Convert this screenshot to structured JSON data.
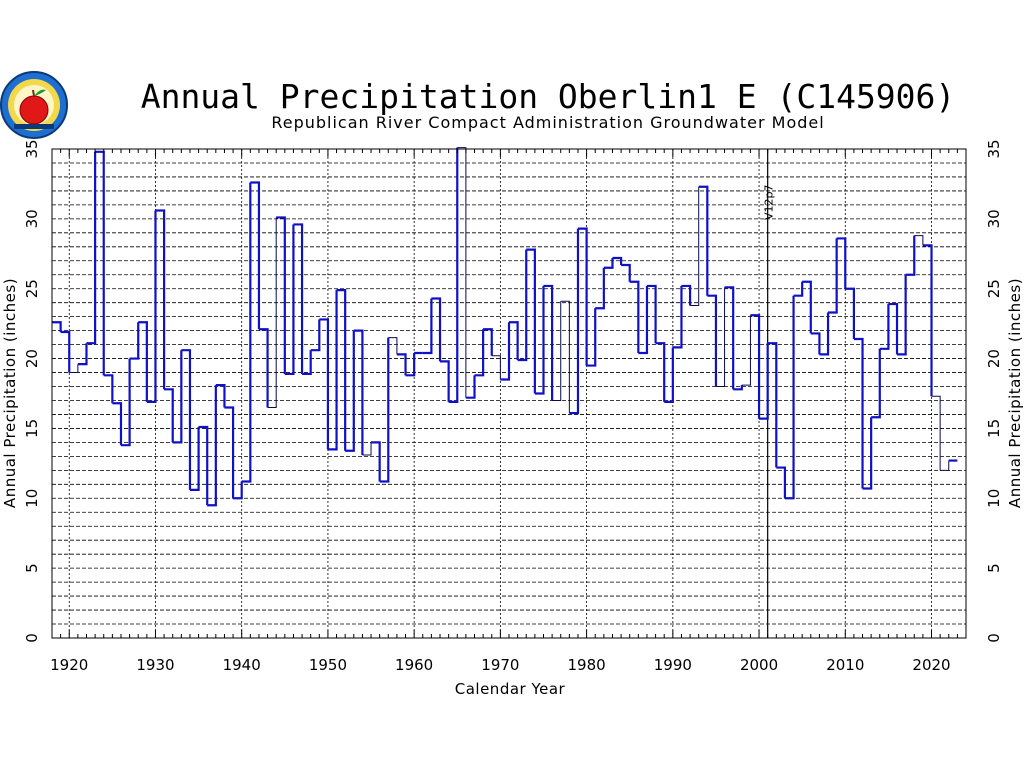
{
  "chart_data": {
    "type": "line",
    "style": "step",
    "title": "Annual Precipitation Oberlin1 E (C145906)",
    "subtitle": "Republican River Compact Administration Groundwater Model",
    "xlabel": "Calendar Year",
    "ylabel": "Annual Precipitation (inches)",
    "xlim": [
      1918,
      2024
    ],
    "ylim": [
      0,
      35
    ],
    "x_ticks": [
      "1920",
      "1930",
      "1940",
      "1950",
      "1960",
      "1970",
      "1980",
      "1990",
      "2000",
      "2010",
      "2020"
    ],
    "y_ticks": [
      "0",
      "5",
      "10",
      "15",
      "20",
      "25",
      "30",
      "35"
    ],
    "grid": true,
    "annotation": {
      "label": "V12p7",
      "x": 2001
    },
    "colors": {
      "observed": "#1010c8",
      "estimated": "#0a0a50"
    },
    "series": [
      {
        "x": [
          1918,
          1919,
          1920,
          1921,
          1922,
          1923,
          1924,
          1925,
          1926,
          1927,
          1928,
          1929,
          1930,
          1931,
          1932,
          1933,
          1934,
          1935,
          1936,
          1937,
          1938,
          1939,
          1940,
          1941,
          1942,
          1943,
          1944,
          1945,
          1946,
          1947,
          1948,
          1949,
          1950,
          1951,
          1952,
          1953,
          1954,
          1955,
          1956,
          1957,
          1958,
          1959,
          1960,
          1961,
          1962,
          1963,
          1964,
          1965,
          1966,
          1967,
          1968,
          1969,
          1970,
          1971,
          1972,
          1973,
          1974,
          1975,
          1976,
          1977,
          1978,
          1979,
          1980,
          1981,
          1982,
          1983,
          1984,
          1985,
          1986,
          1987,
          1988,
          1989,
          1990,
          1991,
          1992,
          1993,
          1994,
          1995,
          1996,
          1997,
          1998,
          1999,
          2000,
          2001,
          2002,
          2003,
          2004,
          2005,
          2006,
          2007,
          2008,
          2009,
          2010,
          2011,
          2012,
          2013,
          2014,
          2015,
          2016,
          2017,
          2018,
          2019,
          2020,
          2021,
          2022
        ],
        "y": [
          22.6,
          21.9,
          19.0,
          19.6,
          21.1,
          34.8,
          18.8,
          16.8,
          13.8,
          20.0,
          22.6,
          16.9,
          30.6,
          17.8,
          14.0,
          20.6,
          10.6,
          15.1,
          9.5,
          18.1,
          16.5,
          10.0,
          11.2,
          32.6,
          22.1,
          16.5,
          30.1,
          18.9,
          29.6,
          18.9,
          20.6,
          22.8,
          13.5,
          24.9,
          13.4,
          22.0,
          13.1,
          14.0,
          11.2,
          21.5,
          20.3,
          18.8,
          20.4,
          20.4,
          24.3,
          19.8,
          16.9,
          35.1,
          17.2,
          18.8,
          22.1,
          20.2,
          18.5,
          22.6,
          19.9,
          27.8,
          17.5,
          25.2,
          17.0,
          24.1,
          16.1,
          29.3,
          19.5,
          23.6,
          26.5,
          27.2,
          26.7,
          25.5,
          20.4,
          25.2,
          21.1,
          16.9,
          20.8,
          25.2,
          23.8,
          32.3,
          24.5,
          18.0,
          25.1,
          17.8,
          18.1,
          23.1,
          15.7,
          21.1,
          12.2,
          10.0,
          24.5,
          25.5,
          21.8,
          20.3,
          23.3,
          28.6,
          25.0,
          21.4,
          10.7,
          15.8,
          20.7,
          23.9,
          20.3,
          26.0,
          28.8,
          28.1,
          17.3,
          12.0,
          12.7
        ],
        "estimated": [
          false,
          false,
          true,
          false,
          false,
          false,
          false,
          false,
          false,
          false,
          false,
          false,
          false,
          false,
          false,
          false,
          false,
          false,
          false,
          false,
          false,
          false,
          false,
          false,
          false,
          true,
          false,
          false,
          false,
          false,
          false,
          false,
          false,
          false,
          false,
          false,
          true,
          false,
          false,
          true,
          false,
          false,
          false,
          false,
          false,
          false,
          false,
          true,
          false,
          false,
          false,
          true,
          false,
          false,
          false,
          false,
          false,
          false,
          true,
          true,
          false,
          false,
          false,
          false,
          false,
          false,
          false,
          false,
          false,
          false,
          false,
          false,
          false,
          false,
          true,
          false,
          false,
          true,
          false,
          false,
          true,
          false,
          false,
          false,
          false,
          false,
          false,
          false,
          false,
          false,
          false,
          false,
          false,
          false,
          false,
          false,
          false,
          false,
          false,
          false,
          true,
          false,
          true,
          true,
          false
        ]
      }
    ]
  }
}
